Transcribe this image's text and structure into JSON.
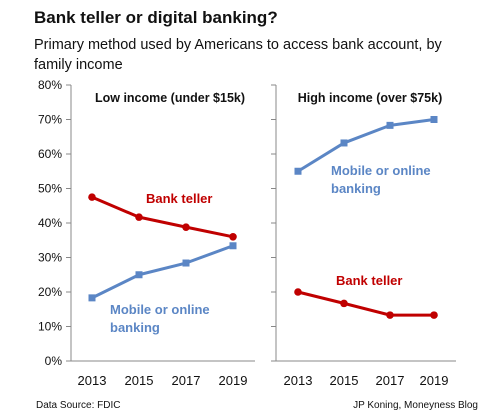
{
  "title": "Bank teller or digital banking?",
  "subtitle": "Primary method used by Americans to access bank account, by family income",
  "source": "Data Source: FDIC",
  "credit": "JP Koning, Moneyness Blog",
  "colors": {
    "bank_teller": "#c00000",
    "mobile_online": "#5b86c5"
  },
  "chart_data": [
    {
      "type": "line",
      "panel_title": "Low income (under $15k)",
      "x": [
        2013,
        2015,
        2017,
        2019
      ],
      "ylim": [
        0,
        80
      ],
      "ytick_labels": [
        "0%",
        "10%",
        "20%",
        "30%",
        "40%",
        "50%",
        "60%",
        "70%",
        "80%"
      ],
      "grid": false,
      "series": [
        {
          "name": "Bank teller",
          "values": [
            47.5,
            41.7,
            38.8,
            36.0
          ]
        },
        {
          "name": "Mobile or online banking",
          "values": [
            18.3,
            25.0,
            28.4,
            33.4
          ]
        }
      ]
    },
    {
      "type": "line",
      "panel_title": "High income (over $75k)",
      "x": [
        2013,
        2015,
        2017,
        2019
      ],
      "ylim": [
        0,
        80
      ],
      "grid": false,
      "series": [
        {
          "name": "Mobile or online banking",
          "values": [
            55.0,
            63.2,
            68.3,
            70.0
          ]
        },
        {
          "name": "Bank teller",
          "values": [
            20.0,
            16.7,
            13.3,
            13.3
          ]
        }
      ]
    }
  ]
}
